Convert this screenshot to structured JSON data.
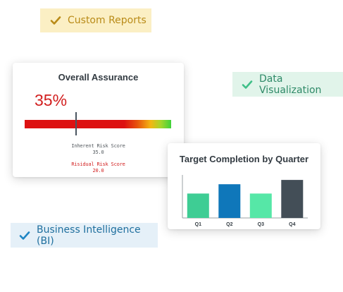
{
  "tags": {
    "custom_reports": {
      "label": "Custom Reports",
      "icon": "checkmark-icon",
      "color": "#b98b18",
      "bg": "#fbefc4"
    },
    "data_visualization": {
      "label": "Data Visualization",
      "icon": "checkmark-icon",
      "color": "#2f8a68",
      "bg": "#e1f4ea"
    },
    "business_intelligence": {
      "label": "Business Intelligence (BI)",
      "icon": "checkmark-icon",
      "color": "#1f6f9e",
      "bg": "#e5f0f8"
    }
  },
  "assurance": {
    "title": "Overall Assurance",
    "percent_label": "35%",
    "inherent_label": "Inherent Risk Score",
    "inherent_value": "35.0",
    "residual_label": "Risidual Risk Score",
    "residual_value": "20.0",
    "gauge_marker_fraction": 0.35,
    "colors": {
      "percent": "#d21f1f",
      "gauge_start": "#dd1111",
      "gauge_end": "#3fd23a",
      "marker": "#4a5560"
    }
  },
  "target_completion": {
    "title": "Target Completion by Quarter"
  },
  "chart_data": {
    "type": "bar",
    "title": "Target Completion by Quarter",
    "categories": [
      "Q1",
      "Q2",
      "Q3",
      "Q4"
    ],
    "values": [
      34,
      47,
      34,
      53
    ],
    "bar_colors": [
      "#3ecd94",
      "#0f77ba",
      "#56e7a7",
      "#434e57"
    ],
    "ylim": [
      0,
      60
    ],
    "grid": false,
    "xlabel": "",
    "ylabel": ""
  }
}
